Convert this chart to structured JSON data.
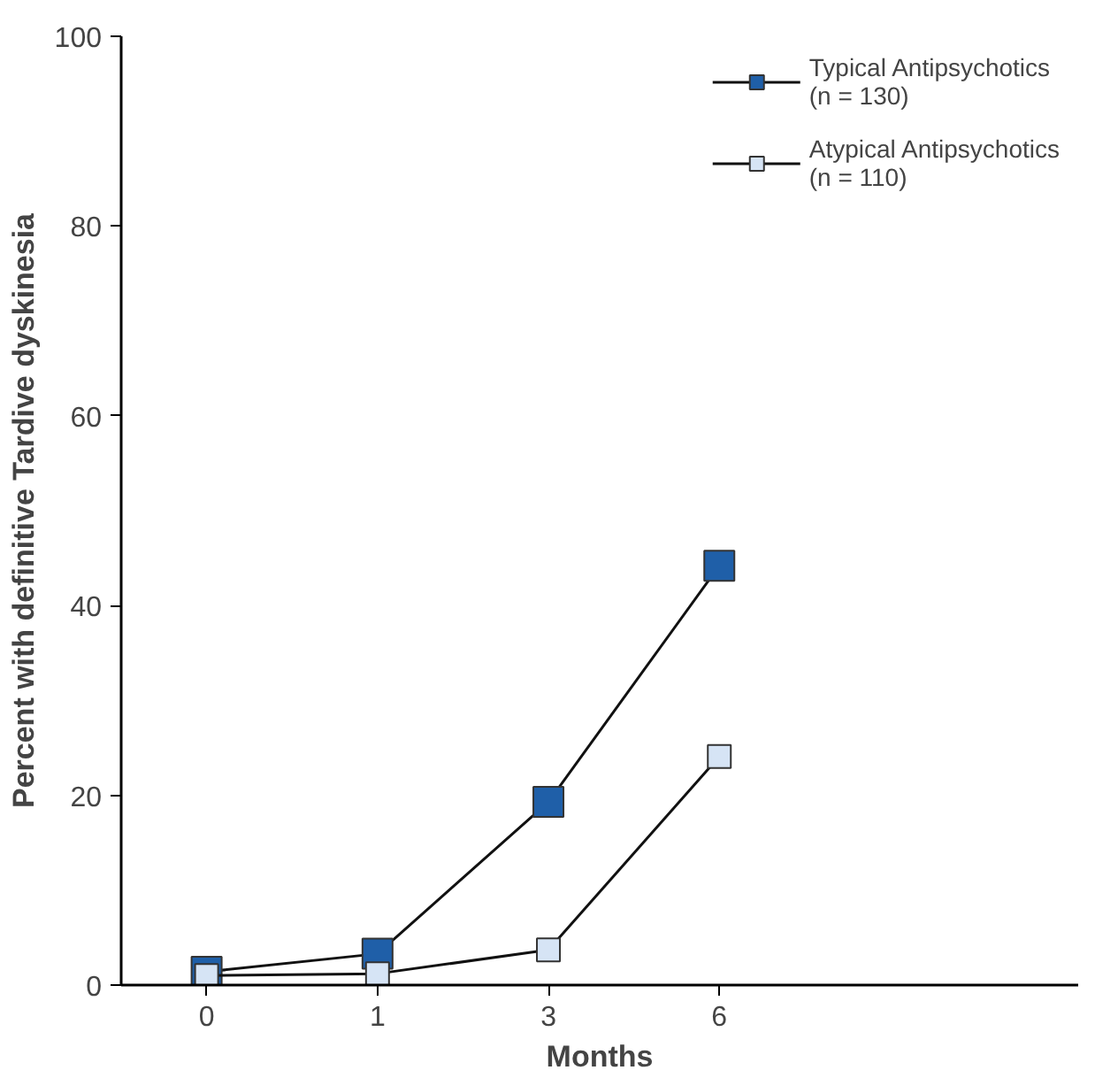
{
  "chart_data": {
    "type": "line",
    "xlabel": "Months",
    "ylabel": "Percent with definitive Tardive dyskinesia",
    "categories": [
      "0",
      "1",
      "3",
      "6"
    ],
    "series": [
      {
        "name": "Typical Antipsychotics\n(n = 130)",
        "color": "#1f5fa8",
        "values": [
          1.4,
          3.3,
          19.3,
          44.2
        ]
      },
      {
        "name": "Atypical Antipsychotics\n(n = 110)",
        "color": "#d6e4f5",
        "values": [
          1.0,
          1.2,
          3.7,
          24.1
        ]
      }
    ],
    "ylim": [
      0,
      100
    ],
    "yticks": [
      0,
      20,
      40,
      60,
      80,
      100
    ],
    "grid": false,
    "legend": "top right",
    "marker": "square",
    "line_style": "solid"
  }
}
